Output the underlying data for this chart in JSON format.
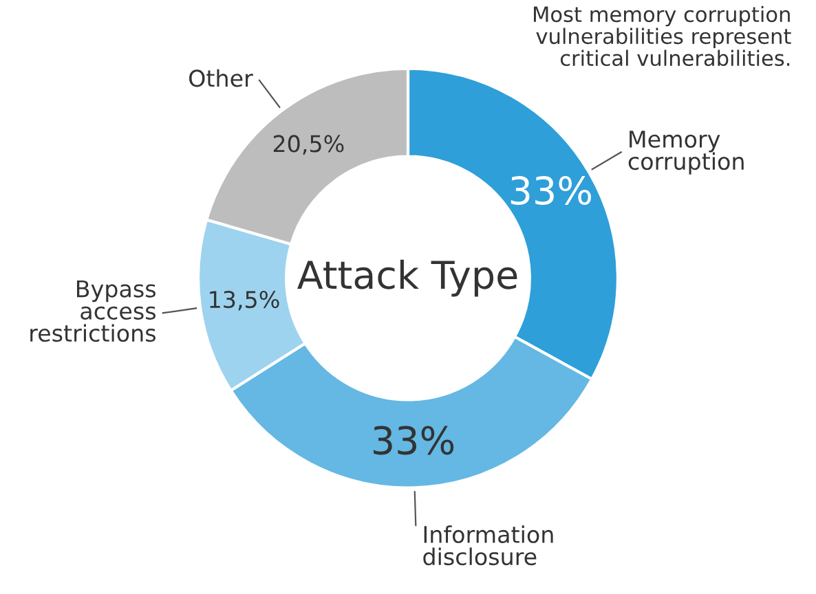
{
  "chart_data": {
    "type": "donut",
    "title": "Attack Type",
    "categories": [
      "Memory\ncorruption",
      "Information\ndisclosure",
      "Bypass\naccess\nrestrictions",
      "Other"
    ],
    "values": [
      33,
      33,
      13.5,
      20.5
    ],
    "value_labels": [
      "33%",
      "33%",
      "13,5%",
      "20,5%"
    ],
    "colors": [
      "#2e9fd9",
      "#64b8e3",
      "#9dd3ee",
      "#bdbdbd"
    ],
    "annotations": [
      "Most memory corruption\nvulnerabilities represent\ncritical vulnerabilities."
    ],
    "legend": false
  }
}
